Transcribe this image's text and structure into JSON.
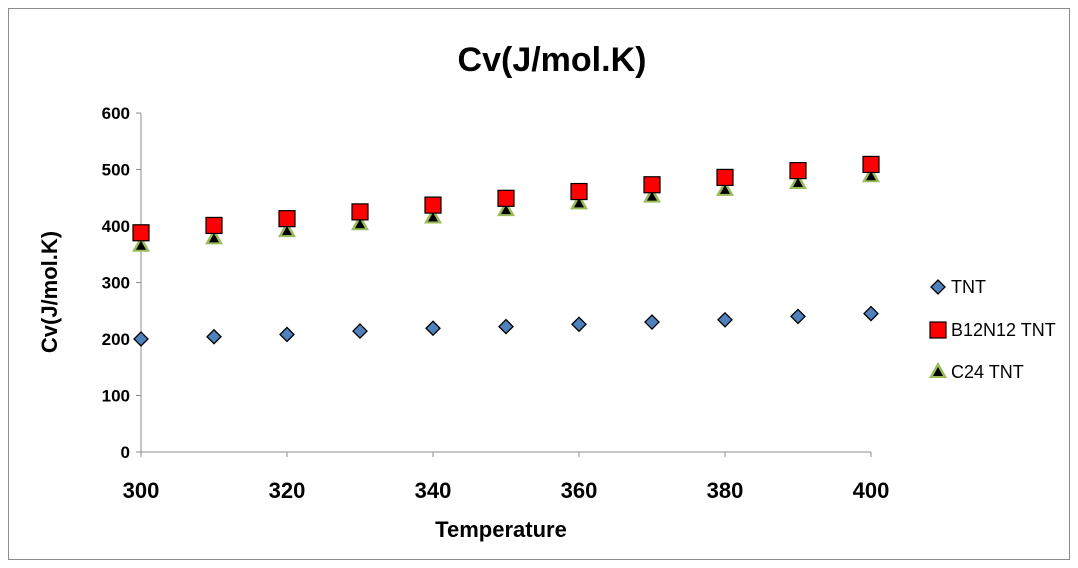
{
  "chart_data": {
    "type": "scatter",
    "title": "Cv(J/mol.K)",
    "xlabel": "Temperature",
    "ylabel": "Cv(J/mol.K)",
    "xlim": [
      300,
      400
    ],
    "ylim": [
      0,
      600
    ],
    "xticks": [
      300,
      320,
      340,
      360,
      380,
      400
    ],
    "yticks": [
      0,
      100,
      200,
      300,
      400,
      500,
      600
    ],
    "grid": false,
    "legend_position": "right",
    "x": [
      300,
      310,
      320,
      330,
      340,
      350,
      360,
      370,
      380,
      390,
      400
    ],
    "series": [
      {
        "name": "TNT",
        "marker": "diamond",
        "color": "#4f81bd",
        "values": [
          200,
          204,
          208,
          214,
          219,
          222,
          226,
          230,
          234,
          240,
          245
        ]
      },
      {
        "name": "B12N12 TNT",
        "marker": "square",
        "color": "#ff0000",
        "values": [
          388,
          401,
          413,
          425,
          437,
          449,
          461,
          473,
          486,
          498,
          509
        ]
      },
      {
        "name": "C24 TNT",
        "marker": "triangle",
        "color": "#9bbb59",
        "values": [
          365,
          378,
          391,
          403,
          415,
          428,
          440,
          452,
          464,
          476,
          488
        ]
      }
    ]
  }
}
